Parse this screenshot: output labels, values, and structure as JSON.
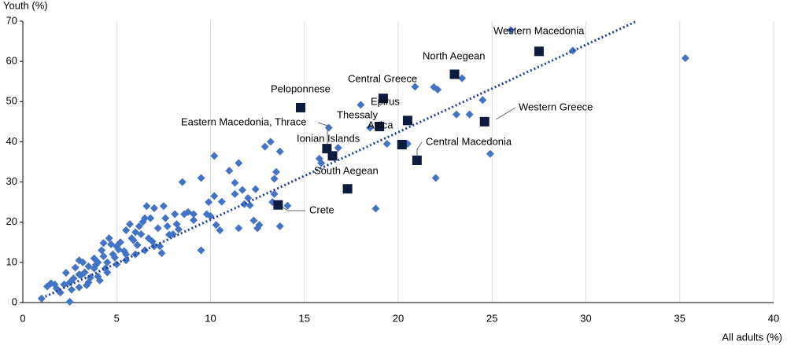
{
  "chart_data": {
    "type": "scatter",
    "y_label": "Youth (%)",
    "x_label": "All adults (%)",
    "xlim": [
      0,
      40
    ],
    "xticks": [
      0,
      5,
      10,
      15,
      20,
      25,
      30,
      35,
      40
    ],
    "ylim": [
      0,
      70
    ],
    "yticks": [
      0,
      10,
      20,
      30,
      40,
      50,
      60,
      70
    ],
    "grid": true,
    "series": [
      {
        "color": "#4472c4",
        "x": [
          35.3,
          29.3,
          26.0,
          24.9,
          22,
          18.8,
          23.4,
          22.1,
          21.9,
          20.9,
          24.5,
          23.1,
          23.8,
          20.5,
          18,
          18.5,
          19.4,
          16.3,
          16.8,
          15.9,
          15.8,
          13.2,
          13.7,
          12.9,
          13.5,
          13.4,
          13.4,
          13.7,
          13.3,
          12.4,
          11.5,
          11.0,
          10.2,
          9.5,
          8.5,
          11.3,
          11.3,
          11.7,
          12.0,
          11.8,
          11.5,
          12.6,
          12.5,
          10.3,
          10.5,
          9.9,
          10.2,
          9.8,
          8.8,
          9.1,
          9.5,
          8.2,
          8.6,
          7.5,
          7.6,
          7.8,
          7.3,
          8.0,
          7.0,
          6.8,
          6.5,
          6.2,
          6.0,
          5.5,
          5.9,
          5.5,
          5.0,
          4.8,
          4.5,
          4.3,
          4.0,
          3.8,
          3.5,
          3.3,
          3.0,
          2.7,
          2.5,
          2.2,
          1.8,
          1.5,
          1.3,
          1.0,
          2.5,
          3.0,
          3.5,
          4.0,
          4.5,
          5.0,
          5.5,
          6.0,
          6.5,
          7.0,
          3.2,
          3.8,
          4.2,
          4.7,
          5.2,
          5.8,
          6.3,
          6.7,
          7.2,
          7.7,
          8.1,
          3.0,
          2.8,
          2.3,
          4.4,
          5.4,
          6.1,
          4.9,
          3.6,
          3.9,
          4.6,
          5.1,
          6.4,
          6.9,
          8.3,
          7.4,
          2.0,
          1.7,
          2.6,
          3.4,
          4.1,
          6.6,
          5.7,
          4.3,
          3.1,
          9.1,
          10.0,
          10.6,
          12.1,
          12.3,
          14.1
        ],
        "values": [
          60.8,
          62.7,
          67.8,
          37,
          31,
          23.4,
          55.8,
          53,
          53.6,
          53.7,
          50.4,
          46.8,
          46.8,
          39.5,
          49.2,
          43.5,
          39.5,
          43.5,
          38.5,
          34.7,
          35.8,
          40,
          37.6,
          38.8,
          32.5,
          30.8,
          27,
          19,
          25,
          28.2,
          34.7,
          32.8,
          36.5,
          31,
          30,
          29.8,
          27,
          28,
          26,
          24.5,
          18.5,
          19.3,
          18.5,
          19.3,
          18,
          25,
          26.5,
          22,
          22.5,
          22,
          13,
          19.5,
          22,
          24,
          21,
          16.9,
          14,
          17,
          23.5,
          21,
          21,
          19,
          17.5,
          18,
          15.5,
          12,
          14,
          12,
          10,
          11.5,
          10,
          8.5,
          9,
          7.5,
          7,
          6,
          5,
          4.5,
          3.5,
          4.8,
          4.0,
          1.0,
          0.2,
          3.8,
          5,
          6.5,
          7.5,
          9.5,
          10.5,
          12,
          13,
          14,
          10,
          11,
          13,
          14.5,
          15,
          16,
          17,
          16,
          18.5,
          19,
          22,
          10.5,
          8.7,
          7.4,
          8.5,
          12.8,
          14.3,
          11.2,
          6.2,
          9.4,
          16,
          13.2,
          20.1,
          15.2,
          18.2,
          12.3,
          2.5,
          4.5,
          3.2,
          4.3,
          5.5,
          24,
          19.5,
          14.8,
          6.8,
          20.5,
          21.5,
          25.1,
          24.2,
          20.4,
          24.1
        ]
      },
      {
        "color": "#0d1b3e",
        "labels": [
          "Western Macedonia",
          "North Aegean",
          "Central Greece",
          "Peloponnese",
          "Epirus",
          "Western Greece",
          "Thessaly",
          "Attica",
          "Eastern Macedonia, Thrace",
          "Ionian Islands",
          "Central Macedonia",
          "South Aegean",
          "Crete"
        ],
        "x": [
          27.5,
          23.0,
          19.2,
          14.8,
          20.5,
          24.6,
          19.0,
          20.2,
          16.2,
          16.5,
          21.0,
          17.3,
          13.6
        ],
        "values": [
          62.5,
          56.8,
          50.8,
          48.5,
          45.3,
          45.0,
          43.8,
          39.3,
          38.3,
          36.5,
          35.4,
          28.3,
          24.3
        ]
      }
    ],
    "trendline": {
      "color": "#1f3c96",
      "x": [
        1.2,
        32.7
      ],
      "values": [
        1.5,
        70
      ]
    }
  }
}
